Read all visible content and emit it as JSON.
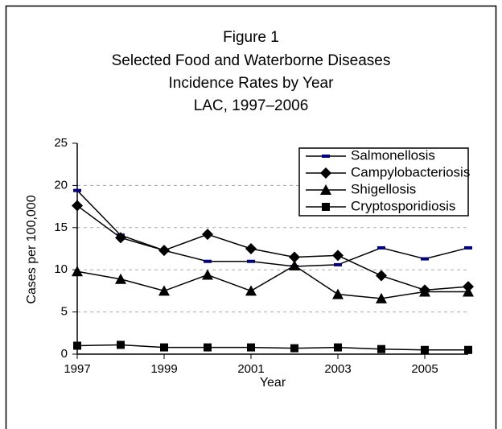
{
  "chart_data": {
    "type": "line",
    "title": [
      "Figure 1",
      "Selected Food and Waterborne Diseases",
      "Incidence Rates by Year",
      "LAC, 1997–2006"
    ],
    "x_label": "Year",
    "y_label": "Cases per 100,000",
    "x": [
      1997,
      1998,
      1999,
      2000,
      2001,
      2002,
      2003,
      2004,
      2005,
      2006
    ],
    "xlim": [
      1997,
      2006
    ],
    "xticks": [
      1997,
      1999,
      2001,
      2003,
      2005
    ],
    "ylim": [
      0,
      25
    ],
    "yticks": [
      0,
      5,
      10,
      15,
      20,
      25
    ],
    "grid": true,
    "legend": "top-right",
    "series": [
      {
        "name": "Salmonellosis",
        "color": "#000000",
        "marker": "dash",
        "marker_color": "#000080",
        "values": [
          19.4,
          14.1,
          12.3,
          11.0,
          11.0,
          10.4,
          10.6,
          12.6,
          11.3,
          12.6
        ]
      },
      {
        "name": "Campylobacteriosis",
        "color": "#000000",
        "marker": "diamond",
        "marker_color": "#000000",
        "values": [
          17.6,
          13.8,
          12.3,
          14.2,
          12.5,
          11.5,
          11.7,
          9.3,
          7.6,
          8.0
        ]
      },
      {
        "name": "Shigellosis",
        "color": "#000000",
        "marker": "triangle",
        "marker_color": "#000000",
        "values": [
          9.8,
          8.9,
          7.5,
          9.4,
          7.5,
          10.5,
          7.1,
          6.6,
          7.4,
          7.4
        ]
      },
      {
        "name": "Cryptosporidiosis",
        "color": "#000000",
        "marker": "square",
        "marker_color": "#000000",
        "values": [
          1.0,
          1.1,
          0.8,
          0.8,
          0.8,
          0.7,
          0.8,
          0.6,
          0.5,
          0.5
        ]
      }
    ]
  }
}
